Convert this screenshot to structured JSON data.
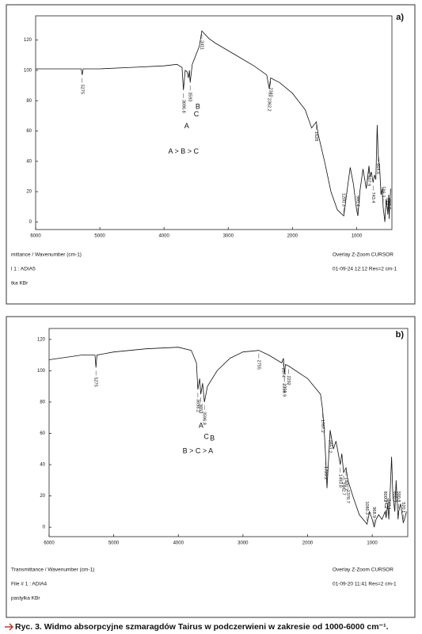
{
  "chart_data": [
    {
      "type": "line",
      "panel_label": "a)",
      "color": "#111111",
      "x": [
        6000,
        5500,
        5290,
        5275,
        5260,
        5000,
        4500,
        4000,
        3800,
        3720,
        3696.8,
        3670,
        3640,
        3620,
        3605,
        3593,
        3560,
        3450,
        3411,
        3300,
        3200,
        3000,
        2800,
        2600,
        2400,
        2362.2,
        2340,
        2200,
        2000,
        1800,
        1700,
        1628,
        1600,
        1500,
        1400,
        1300,
        1200.3,
        1150,
        1100,
        1050,
        1000,
        980.4,
        950,
        900,
        880,
        850,
        807.6,
        790,
        770,
        743.4,
        720,
        700,
        680,
        664.6,
        640,
        620,
        600,
        586.3,
        560,
        540,
        513,
        500,
        492.6,
        470
      ],
      "values": [
        101,
        101,
        101,
        97,
        101,
        101,
        102,
        103,
        104,
        102,
        87,
        100,
        99,
        95,
        100,
        92,
        104,
        116,
        126,
        121,
        118,
        113,
        108,
        103,
        97,
        88,
        95,
        92,
        85,
        74,
        62,
        66,
        58,
        40,
        20,
        8,
        4,
        20,
        36,
        25,
        8,
        4,
        20,
        35,
        30,
        22,
        37,
        30,
        33,
        26,
        31,
        28,
        64,
        45,
        35,
        18,
        22,
        10,
        0,
        15,
        5,
        18,
        2,
        22
      ],
      "xlim": [
        6000,
        450
      ],
      "ylim": [
        -5,
        136
      ],
      "xticks": [
        6000,
        5000,
        4000,
        3000,
        2000,
        1000
      ],
      "yticks": [
        0,
        20,
        40,
        60,
        80,
        100,
        120
      ],
      "peaks": [
        5275,
        3696.8,
        3593,
        3411,
        2362.2,
        2340,
        1628,
        1200.3,
        980.4,
        807.6,
        743.4,
        664.6,
        586.3,
        513,
        492.6
      ],
      "annotations": [
        {
          "text": "A",
          "x": 3696.8
        },
        {
          "text": "B",
          "x": 3560
        },
        {
          "text": "C",
          "x": 3620
        }
      ],
      "note": "A > B > C",
      "footer_left": [
        "mittance / Wavenumber (cm-1)",
        "l 1 : ADIA5",
        "tka KBr"
      ],
      "footer_right": [
        "Overlay Z-Zoom CURSOR",
        "01-09-24  12:12  Res=2 cm-1"
      ]
    },
    {
      "type": "line",
      "panel_label": "b)",
      "color": "#111111",
      "x": [
        6000,
        5500,
        5290,
        5275,
        5260,
        5000,
        4500,
        4000,
        3800,
        3720,
        3698.2,
        3670,
        3653,
        3625,
        3596.8,
        3550,
        3400,
        3200,
        3000,
        2755,
        2600,
        2400,
        2374,
        2358.9,
        2342,
        2292,
        2000,
        1800,
        1767.2,
        1740,
        1720.2,
        1700,
        1651.2,
        1600,
        1560,
        1493.8,
        1470,
        1442.7,
        1405.7,
        1376.7,
        1300,
        1200,
        1080.3,
        1040,
        1000,
        968.9,
        940,
        900,
        850,
        800.2,
        784.2,
        760,
        743.1,
        720,
        700,
        680,
        650.3,
        630,
        600,
        590.8,
        560,
        520.1,
        500,
        470
      ],
      "values": [
        107,
        110,
        110,
        102,
        110,
        112,
        114,
        115,
        113,
        105,
        88,
        95,
        85,
        92,
        80,
        90,
        100,
        108,
        112,
        113,
        110,
        105,
        108,
        98,
        104,
        103,
        95,
        85,
        75,
        60,
        45,
        25,
        62,
        50,
        55,
        40,
        47,
        35,
        38,
        30,
        20,
        8,
        2,
        10,
        5,
        0,
        5,
        8,
        5,
        10,
        6,
        15,
        5,
        25,
        45,
        20,
        10,
        30,
        5,
        10,
        15,
        3,
        5,
        10
      ],
      "xlim": [
        6000,
        450
      ],
      "ylim": [
        -6,
        127
      ],
      "xticks": [
        6000,
        5000,
        4000,
        3000,
        2000,
        1000
      ],
      "yticks": [
        0,
        20,
        40,
        60,
        80,
        100,
        120
      ],
      "peaks": [
        5275,
        3698.2,
        3653,
        3596.8,
        2755,
        2374,
        2359,
        2292,
        2358.9,
        1767.2,
        1720.2,
        1651.2,
        1493.8,
        1442.7,
        1405.7,
        1376.7,
        1080.3,
        968.9,
        800.2,
        784.2,
        743.1,
        650.3,
        590.8,
        520.1
      ],
      "annotations": [
        {
          "text": "A",
          "x": 3698.2
        },
        {
          "text": "C",
          "x": 3653
        },
        {
          "text": "B",
          "x": 3596.8
        }
      ],
      "note": "B > C > A",
      "footer_left": [
        "Transmittance / Wavenumber (cm-1)",
        "File # 1 : ADIA4",
        "pastylka KBr"
      ],
      "footer_right": [
        "Overlay Z-Zoom CURSOR",
        "01-09-20  11:41  Res=2 cm-1"
      ]
    }
  ],
  "caption": "Ryc. 3. Widmo absorpcyjne szmaragdów Tairus w podczerwieni w zakresie od 1000-6000 cm⁻¹."
}
